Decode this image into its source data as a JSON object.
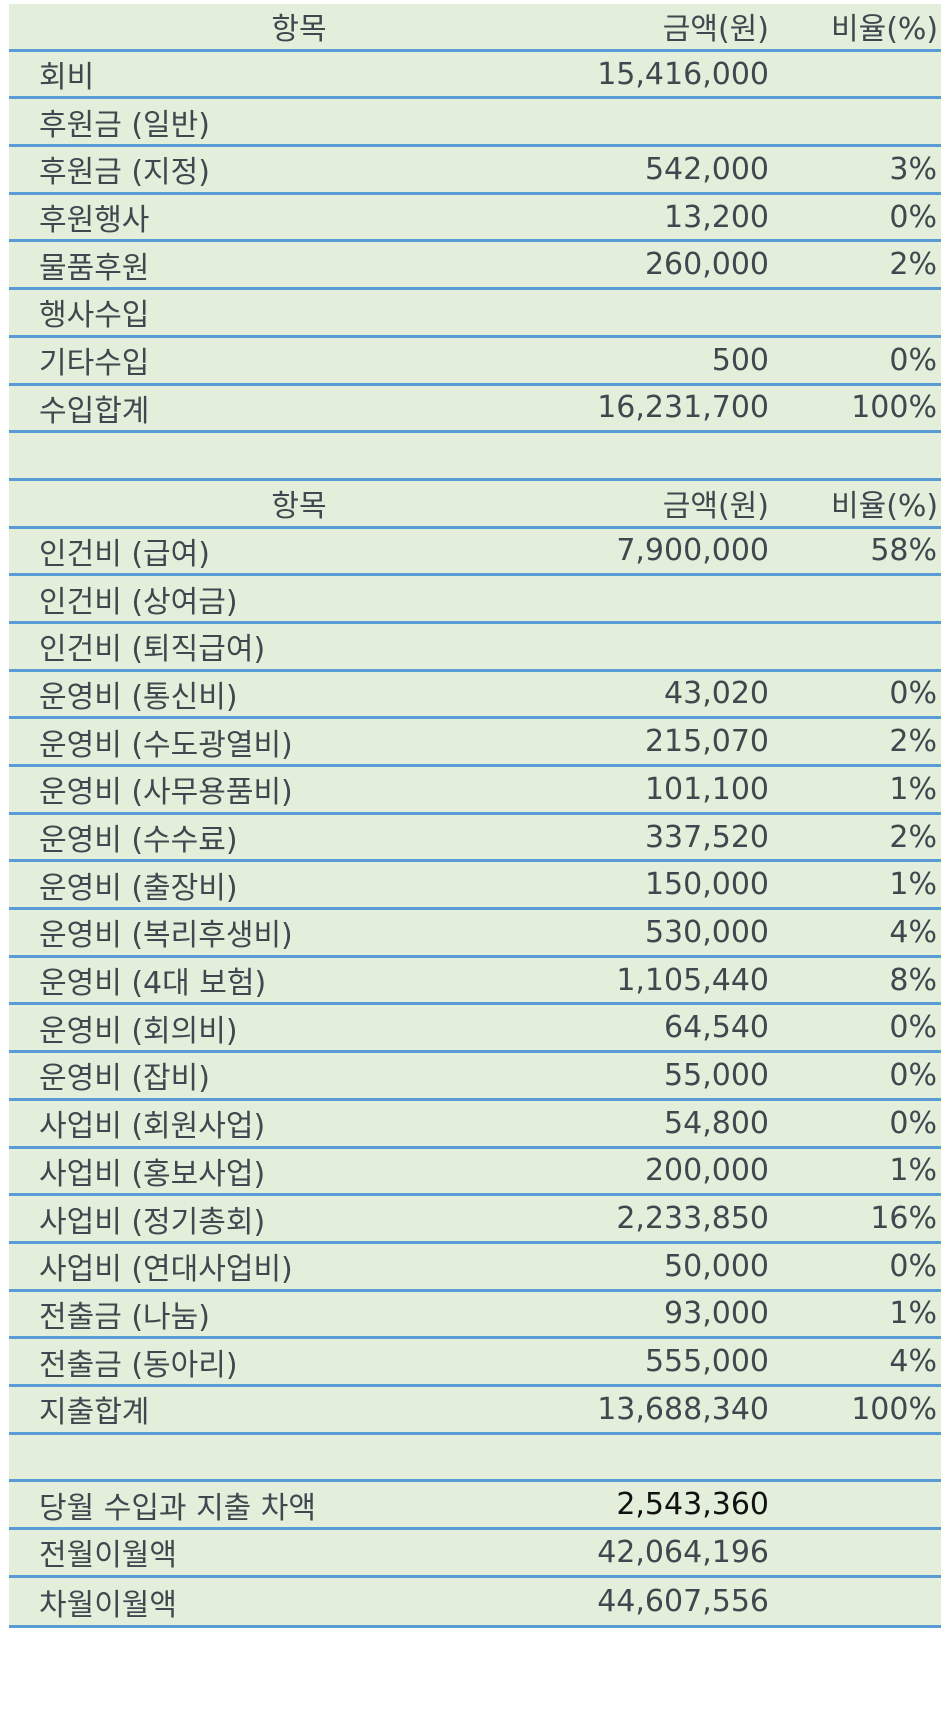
{
  "income": {
    "headers": [
      "항목",
      "금액(원)",
      "비율(%)"
    ],
    "rows": [
      [
        "회비",
        "15,416,000",
        ""
      ],
      [
        "후원금 (일반)",
        "",
        ""
      ],
      [
        "후원금 (지정)",
        "542,000",
        "3%"
      ],
      [
        "후원행사",
        "13,200",
        "0%"
      ],
      [
        "물품후원",
        "260,000",
        "2%"
      ],
      [
        "행사수입",
        "",
        ""
      ],
      [
        "기타수입",
        "500",
        "0%"
      ],
      [
        "수입합계",
        "16,231,700",
        "100%"
      ]
    ]
  },
  "expense": {
    "headers": [
      "항목",
      "금액(원)",
      "비율(%)"
    ],
    "rows": [
      [
        "인건비 (급여)",
        "7,900,000",
        "58%"
      ],
      [
        "인건비 (상여금)",
        "",
        ""
      ],
      [
        "인건비 (퇴직급여)",
        "",
        ""
      ],
      [
        "운영비 (통신비)",
        "43,020",
        "0%"
      ],
      [
        "운영비 (수도광열비)",
        "215,070",
        "2%"
      ],
      [
        "운영비 (사무용품비)",
        "101,100",
        "1%"
      ],
      [
        "운영비 (수수료)",
        "337,520",
        "2%"
      ],
      [
        "운영비 (출장비)",
        "150,000",
        "1%"
      ],
      [
        "운영비 (복리후생비)",
        "530,000",
        "4%"
      ],
      [
        "운영비 (4대 보험)",
        "1,105,440",
        "8%"
      ],
      [
        "운영비 (회의비)",
        "64,540",
        "0%"
      ],
      [
        "운영비 (잡비)",
        "55,000",
        "0%"
      ],
      [
        "사업비 (회원사업)",
        "54,800",
        "0%"
      ],
      [
        "사업비 (홍보사업)",
        "200,000",
        "1%"
      ],
      [
        "사업비 (정기총회)",
        "2,233,850",
        "16%"
      ],
      [
        "사업비 (연대사업비)",
        "50,000",
        "0%"
      ],
      [
        "전출금 (나눔)",
        "93,000",
        "1%"
      ],
      [
        "전출금 (동아리)",
        "555,000",
        "4%"
      ],
      [
        "지출합계",
        "13,688,340",
        "100%"
      ]
    ]
  },
  "summary": {
    "rows": [
      [
        "당월 수입과 지출 차액",
        "2,543,360"
      ],
      [
        "전월이월액",
        "42,064,196"
      ],
      [
        "차월이월액",
        "44,607,556"
      ]
    ]
  }
}
